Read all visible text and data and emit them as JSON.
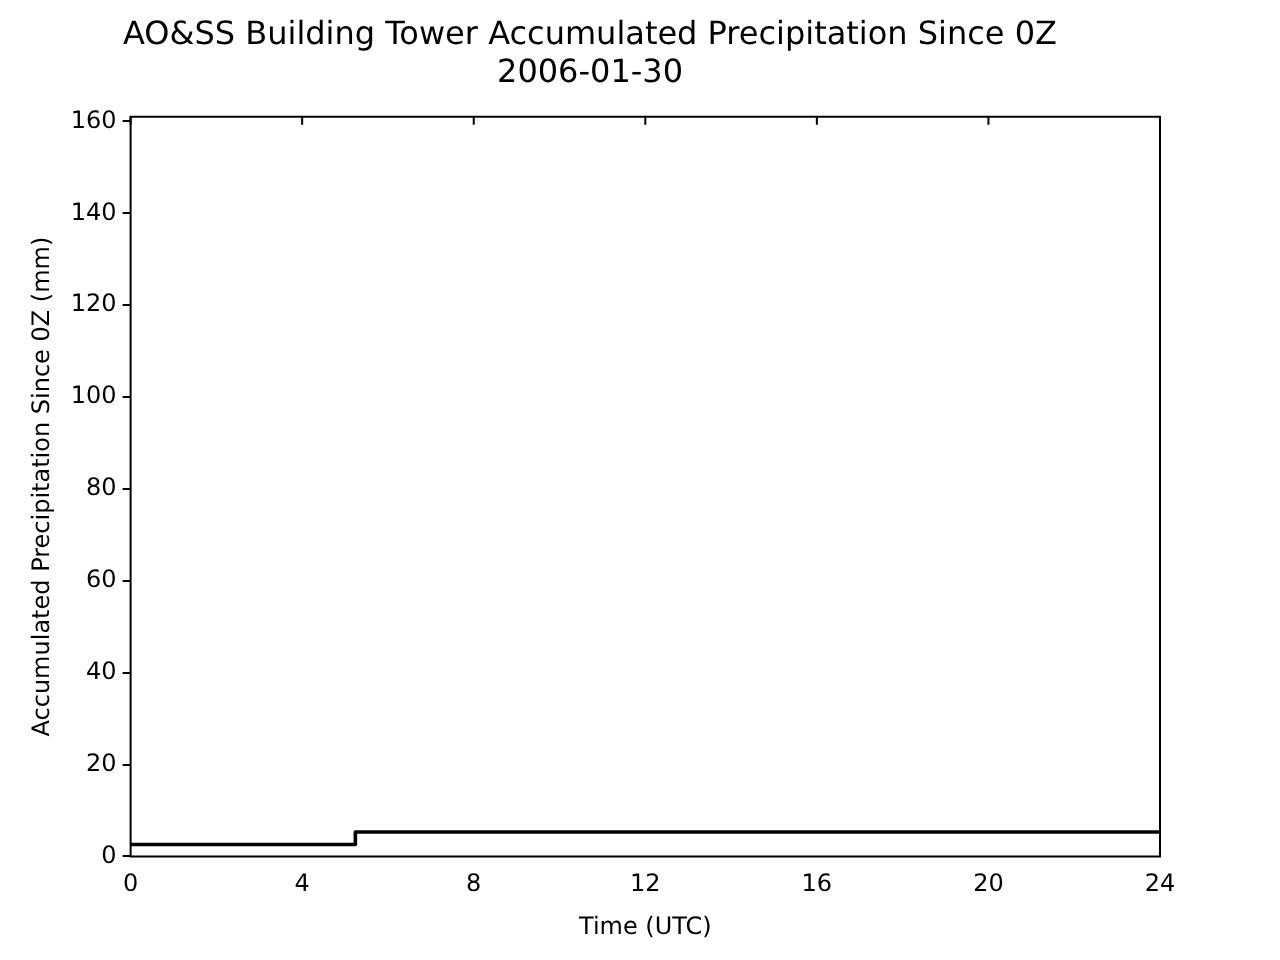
{
  "chart_data": {
    "type": "step",
    "title": "AO&SS Building Tower Accumulated Precipitation Since 0Z",
    "subtitle": "2006-01-30",
    "xlabel": "Time (UTC)",
    "ylabel": "Accumulated Precipitation Since 0Z (mm)",
    "x": [
      0,
      5.24,
      24
    ],
    "series": [
      {
        "color": "#000000",
        "values": [
          2.6,
          5.3,
          5.3
        ]
      }
    ],
    "xlim": [
      0,
      24
    ],
    "xticks": [
      0,
      4,
      8,
      12,
      16,
      20,
      24
    ],
    "ylim": [
      0,
      161
    ],
    "yticks": [
      0,
      20,
      40,
      60,
      80,
      100,
      120,
      140,
      160
    ],
    "grid": false,
    "legend": false
  }
}
